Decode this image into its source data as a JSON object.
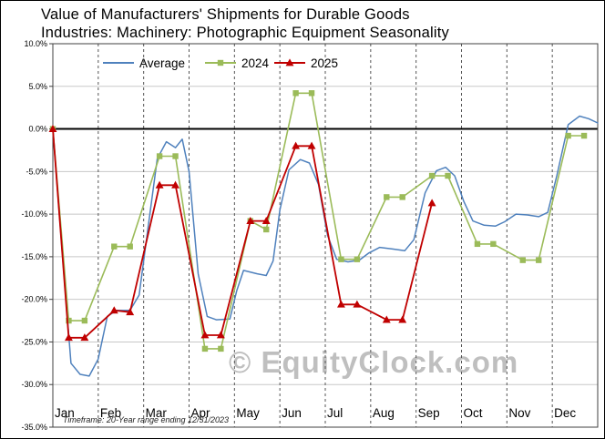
{
  "watermark": "© EquityClock.com",
  "footnote": "Timeframe: 20-Year range ending 12/31/2023",
  "title_lines": [
    "Value of Manufacturers' Shipments for Durable Goods",
    "Industries: Machinery: Photographic Equipment Seasonality"
  ],
  "chart_data": {
    "type": "line",
    "title": "Value of Manufacturers' Shipments for Durable Goods Industries: Machinery: Photographic Equipment Seasonality",
    "x_axis": {
      "months": [
        "Jan",
        "Feb",
        "Mar",
        "Apr",
        "May",
        "Jun",
        "Jul",
        "Aug",
        "Sep",
        "Oct",
        "Nov",
        "Dec"
      ],
      "range": [
        0,
        12
      ],
      "vertical_dashed_month_lines": true
    },
    "y_axis": {
      "min": -35,
      "max": 10,
      "tick_step": 5,
      "ticks": [
        {
          "v": 10,
          "label": "10.0%"
        },
        {
          "v": 5,
          "label": "5.0%"
        },
        {
          "v": 0,
          "label": "0.0%"
        },
        {
          "v": -5,
          "label": "-5.0%"
        },
        {
          "v": -10,
          "label": "-10.0%"
        },
        {
          "v": -15,
          "label": "-15.0%"
        },
        {
          "v": -20,
          "label": "-20.0%"
        },
        {
          "v": -25,
          "label": "-25.0%"
        },
        {
          "v": -30,
          "label": "-30.0%"
        },
        {
          "v": -35,
          "label": "-35.0%"
        }
      ],
      "zero_line": true
    },
    "legend": {
      "position": "top",
      "entries": [
        "Average",
        "2024",
        "2025"
      ]
    },
    "style": {
      "grid_color": "#c8c8c8",
      "month_line_color": "#555555",
      "zero_line_color": "#000000",
      "axis_color": "#404040",
      "watermark_color": "#bfbfbf"
    },
    "series": [
      {
        "name": "Average",
        "color": "#4f81bd",
        "marker": "none",
        "line_width": 1.5,
        "points": [
          [
            0.0,
            0.0
          ],
          [
            0.2,
            -14.0
          ],
          [
            0.4,
            -27.5
          ],
          [
            0.6,
            -28.8
          ],
          [
            0.8,
            -29.0
          ],
          [
            1.0,
            -27.0
          ],
          [
            1.2,
            -22.0
          ],
          [
            1.4,
            -21.3
          ],
          [
            1.7,
            -21.3
          ],
          [
            1.9,
            -19.5
          ],
          [
            2.1,
            -11.5
          ],
          [
            2.3,
            -3.5
          ],
          [
            2.5,
            -1.5
          ],
          [
            2.7,
            -2.2
          ],
          [
            2.85,
            -1.2
          ],
          [
            3.0,
            -5.0
          ],
          [
            3.2,
            -17.0
          ],
          [
            3.4,
            -22.0
          ],
          [
            3.6,
            -22.4
          ],
          [
            3.9,
            -22.3
          ],
          [
            4.05,
            -19.0
          ],
          [
            4.2,
            -16.6
          ],
          [
            4.5,
            -17.0
          ],
          [
            4.7,
            -17.2
          ],
          [
            4.85,
            -15.5
          ],
          [
            5.0,
            -9.5
          ],
          [
            5.2,
            -4.8
          ],
          [
            5.45,
            -3.6
          ],
          [
            5.65,
            -4.0
          ],
          [
            5.85,
            -6.5
          ],
          [
            6.05,
            -12.5
          ],
          [
            6.25,
            -15.3
          ],
          [
            6.5,
            -15.6
          ],
          [
            6.75,
            -15.4
          ],
          [
            6.95,
            -14.6
          ],
          [
            7.2,
            -13.9
          ],
          [
            7.5,
            -14.1
          ],
          [
            7.75,
            -14.3
          ],
          [
            7.95,
            -13.0
          ],
          [
            8.2,
            -7.5
          ],
          [
            8.45,
            -4.9
          ],
          [
            8.65,
            -4.5
          ],
          [
            8.85,
            -5.5
          ],
          [
            9.05,
            -8.5
          ],
          [
            9.25,
            -10.8
          ],
          [
            9.5,
            -11.3
          ],
          [
            9.75,
            -11.4
          ],
          [
            9.95,
            -10.9
          ],
          [
            10.2,
            -10.0
          ],
          [
            10.45,
            -10.1
          ],
          [
            10.7,
            -10.3
          ],
          [
            10.9,
            -9.8
          ],
          [
            11.1,
            -5.5
          ],
          [
            11.35,
            0.5
          ],
          [
            11.6,
            1.5
          ],
          [
            11.8,
            1.2
          ],
          [
            12.0,
            0.7
          ]
        ]
      },
      {
        "name": "2024",
        "color": "#9bbb59",
        "marker": "square",
        "line_width": 1.6,
        "points": [
          [
            0.0,
            0.0
          ],
          [
            0.35,
            -22.5
          ],
          [
            0.7,
            -22.5
          ],
          [
            1.35,
            -13.8
          ],
          [
            1.7,
            -13.8
          ],
          [
            2.35,
            -3.2
          ],
          [
            2.7,
            -3.2
          ],
          [
            3.35,
            -25.8
          ],
          [
            3.7,
            -25.8
          ],
          [
            4.35,
            -10.8
          ],
          [
            4.7,
            -11.8
          ],
          [
            5.35,
            4.2
          ],
          [
            5.7,
            4.2
          ],
          [
            6.35,
            -15.3
          ],
          [
            6.7,
            -15.3
          ],
          [
            7.35,
            -8.0
          ],
          [
            7.7,
            -8.0
          ],
          [
            8.35,
            -5.5
          ],
          [
            8.7,
            -5.5
          ],
          [
            9.35,
            -13.5
          ],
          [
            9.7,
            -13.5
          ],
          [
            10.35,
            -15.4
          ],
          [
            10.7,
            -15.4
          ],
          [
            11.35,
            -0.8
          ],
          [
            11.7,
            -0.8
          ]
        ]
      },
      {
        "name": "2025",
        "color": "#c00000",
        "marker": "triangle",
        "line_width": 1.8,
        "points": [
          [
            0.0,
            0.0
          ],
          [
            0.35,
            -24.5
          ],
          [
            0.7,
            -24.5
          ],
          [
            1.35,
            -21.3
          ],
          [
            1.7,
            -21.5
          ],
          [
            2.35,
            -6.6
          ],
          [
            2.7,
            -6.6
          ],
          [
            3.35,
            -24.2
          ],
          [
            3.7,
            -24.2
          ],
          [
            4.35,
            -10.8
          ],
          [
            4.7,
            -10.8
          ],
          [
            5.35,
            -2.0
          ],
          [
            5.7,
            -2.0
          ],
          [
            6.35,
            -20.6
          ],
          [
            6.7,
            -20.6
          ],
          [
            7.35,
            -22.4
          ],
          [
            7.7,
            -22.4
          ],
          [
            8.35,
            -8.7
          ]
        ]
      }
    ]
  }
}
